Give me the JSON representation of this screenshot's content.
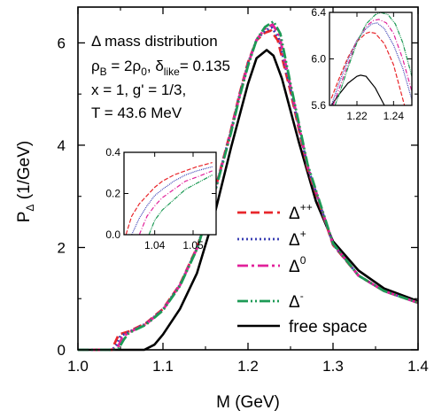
{
  "chart_data": {
    "type": "line",
    "xlabel": "M (GeV)",
    "ylabel": "P",
    "ylabel_sub": "Δ",
    "ylabel_unit": " (1/GeV)",
    "xlim": [
      1.0,
      1.4
    ],
    "ylim": [
      0,
      6.7
    ],
    "xticks": [
      1.0,
      1.1,
      1.2,
      1.3,
      1.4
    ],
    "xtick_labels": [
      "1.0",
      "1.1",
      "1.2",
      "1.3",
      "1.4"
    ],
    "yticks": [
      0,
      2,
      4,
      6
    ],
    "ytick_labels": [
      "0",
      "2",
      "4",
      "6"
    ],
    "grid": false,
    "legend_position": "lower-right",
    "annotation_lines": [
      [
        {
          "t": "Δ mass distribution"
        }
      ],
      [
        {
          "t": "ρ"
        },
        {
          "t": "B",
          "sub": true
        },
        {
          "t": " = 2ρ"
        },
        {
          "t": "0",
          "sub": true
        },
        {
          "t": ", δ"
        },
        {
          "t": "like",
          "sub": true
        },
        {
          "t": "= 0.135"
        }
      ],
      [
        {
          "t": "x = 1,    g' = 1/3,"
        }
      ],
      [
        {
          "t": "T = 43.6 MeV"
        }
      ]
    ],
    "series": [
      {
        "key": "dpp",
        "label": "Δ",
        "sup": "++",
        "color": "#e8262b",
        "dash": "10,5",
        "x": [
          1.0,
          1.02,
          1.04,
          1.043,
          1.048,
          1.06,
          1.08,
          1.1,
          1.12,
          1.14,
          1.16,
          1.18,
          1.19,
          1.2,
          1.21,
          1.22,
          1.227,
          1.235,
          1.25,
          1.27,
          1.3,
          1.33,
          1.36,
          1.4
        ],
        "y": [
          0,
          0,
          0,
          0.12,
          0.3,
          0.36,
          0.52,
          0.8,
          1.28,
          2.0,
          3.05,
          4.3,
          5.0,
          5.62,
          6.05,
          6.2,
          6.24,
          6.05,
          5.05,
          3.55,
          2.05,
          1.45,
          1.15,
          0.92
        ]
      },
      {
        "key": "dp",
        "label": "Δ",
        "sup": "+",
        "color": "#3a3fb3",
        "dash": "2,3",
        "x": [
          1.0,
          1.02,
          1.04,
          1.045,
          1.05,
          1.06,
          1.08,
          1.1,
          1.12,
          1.14,
          1.16,
          1.18,
          1.19,
          1.2,
          1.21,
          1.22,
          1.228,
          1.236,
          1.25,
          1.27,
          1.3,
          1.33,
          1.36,
          1.4
        ],
        "y": [
          0,
          0,
          0,
          0.08,
          0.27,
          0.35,
          0.51,
          0.79,
          1.27,
          1.99,
          3.04,
          4.28,
          4.98,
          5.6,
          6.06,
          6.24,
          6.3,
          6.1,
          5.1,
          3.58,
          2.06,
          1.45,
          1.15,
          0.92
        ]
      },
      {
        "key": "d0",
        "label": "Δ",
        "sup": "0",
        "color": "#e1219a",
        "dash": "12,4,3,4",
        "x": [
          1.0,
          1.02,
          1.04,
          1.047,
          1.052,
          1.06,
          1.08,
          1.1,
          1.12,
          1.14,
          1.16,
          1.18,
          1.19,
          1.2,
          1.21,
          1.22,
          1.229,
          1.237,
          1.25,
          1.27,
          1.3,
          1.33,
          1.36,
          1.4
        ],
        "y": [
          0,
          0,
          0,
          0.05,
          0.24,
          0.34,
          0.5,
          0.78,
          1.26,
          1.98,
          3.03,
          4.26,
          4.96,
          5.58,
          6.06,
          6.28,
          6.36,
          6.14,
          5.15,
          3.6,
          2.07,
          1.45,
          1.15,
          0.92
        ]
      },
      {
        "key": "dm",
        "label": "Δ",
        "sup": "-",
        "color": "#1d9a55",
        "dash": "12,3,2,3,2,3",
        "x": [
          1.0,
          1.02,
          1.04,
          1.048,
          1.054,
          1.06,
          1.08,
          1.1,
          1.12,
          1.14,
          1.16,
          1.18,
          1.19,
          1.2,
          1.21,
          1.22,
          1.23,
          1.238,
          1.25,
          1.27,
          1.3,
          1.33,
          1.36,
          1.4
        ],
        "y": [
          0,
          0,
          0,
          0.03,
          0.2,
          0.33,
          0.49,
          0.77,
          1.25,
          1.97,
          3.02,
          4.24,
          4.94,
          5.55,
          6.06,
          6.31,
          6.42,
          6.18,
          5.2,
          3.63,
          2.08,
          1.45,
          1.15,
          0.92
        ]
      },
      {
        "key": "free",
        "label": "free space",
        "sup": "",
        "color": "#000000",
        "dash": "",
        "x": [
          1.0,
          1.06,
          1.078,
          1.09,
          1.1,
          1.12,
          1.14,
          1.16,
          1.18,
          1.2,
          1.21,
          1.222,
          1.23,
          1.24,
          1.26,
          1.28,
          1.3,
          1.33,
          1.36,
          1.4
        ],
        "y": [
          0,
          0,
          0,
          0.1,
          0.3,
          0.8,
          1.5,
          2.6,
          3.95,
          5.2,
          5.7,
          5.86,
          5.75,
          5.3,
          4.05,
          2.9,
          2.12,
          1.55,
          1.2,
          0.95
        ]
      }
    ],
    "insets": [
      {
        "name": "inset-low-mass",
        "xlim": [
          1.032,
          1.056
        ],
        "ylim": [
          0,
          0.4
        ],
        "xticks": [
          1.04,
          1.05
        ],
        "xtick_labels": [
          "1.04",
          "1.05"
        ],
        "yticks": [
          0,
          0.2,
          0.4
        ],
        "ytick_labels": [
          "0.0",
          "0.2",
          "0.4"
        ],
        "series": [
          {
            "key": "dpp",
            "x": [
              1.0325,
              1.034,
              1.036,
              1.038,
              1.04,
              1.042,
              1.045,
              1.048,
              1.051,
              1.055
            ],
            "y": [
              0.0,
              0.09,
              0.15,
              0.19,
              0.23,
              0.26,
              0.29,
              0.31,
              0.33,
              0.35
            ]
          },
          {
            "key": "dp",
            "x": [
              1.034,
              1.036,
              1.038,
              1.04,
              1.042,
              1.045,
              1.048,
              1.051,
              1.055
            ],
            "y": [
              0.0,
              0.08,
              0.14,
              0.19,
              0.22,
              0.26,
              0.29,
              0.31,
              0.33
            ]
          },
          {
            "key": "d0",
            "x": [
              1.036,
              1.038,
              1.04,
              1.042,
              1.045,
              1.048,
              1.051,
              1.055
            ],
            "y": [
              0.0,
              0.09,
              0.14,
              0.18,
              0.22,
              0.26,
              0.28,
              0.31
            ]
          },
          {
            "key": "dm",
            "x": [
              1.0385,
              1.04,
              1.042,
              1.045,
              1.048,
              1.051,
              1.055
            ],
            "y": [
              0.0,
              0.07,
              0.12,
              0.17,
              0.22,
              0.25,
              0.29
            ]
          }
        ]
      },
      {
        "name": "inset-peak",
        "xlim": [
          1.205,
          1.25
        ],
        "ylim": [
          5.6,
          6.4
        ],
        "xticks": [
          1.22,
          1.24
        ],
        "xtick_labels": [
          "1.22",
          "1.24"
        ],
        "yticks": [
          5.6,
          6.0,
          6.4
        ],
        "ytick_labels": [
          "5.6",
          "6.0",
          "6.4"
        ],
        "series": [
          {
            "key": "free",
            "x": [
              1.206,
              1.21,
              1.215,
              1.22,
              1.222,
              1.225,
              1.23,
              1.235
            ],
            "y": [
              5.6,
              5.69,
              5.79,
              5.85,
              5.86,
              5.85,
              5.75,
              5.6
            ]
          },
          {
            "key": "dpp",
            "x": [
              1.206,
              1.21,
              1.215,
              1.22,
              1.225,
              1.227,
              1.23,
              1.235,
              1.24,
              1.246
            ],
            "y": [
              5.66,
              5.82,
              6.01,
              6.15,
              6.22,
              6.23,
              6.22,
              6.13,
              5.95,
              5.6
            ]
          },
          {
            "key": "dp",
            "x": [
              1.206,
              1.21,
              1.215,
              1.22,
              1.225,
              1.228,
              1.231,
              1.235,
              1.24,
              1.245,
              1.25
            ],
            "y": [
              5.6,
              5.78,
              5.99,
              6.16,
              6.26,
              6.3,
              6.31,
              6.26,
              6.12,
              5.92,
              5.65
            ]
          },
          {
            "key": "d0",
            "x": [
              1.207,
              1.21,
              1.215,
              1.22,
              1.225,
              1.229,
              1.232,
              1.236,
              1.24,
              1.245,
              1.25
            ],
            "y": [
              5.6,
              5.73,
              5.95,
              6.15,
              6.28,
              6.33,
              6.34,
              6.31,
              6.22,
              6.0,
              5.72
            ]
          },
          {
            "key": "dm",
            "x": [
              1.208,
              1.21,
              1.215,
              1.22,
              1.225,
              1.23,
              1.233,
              1.237,
              1.241,
              1.245,
              1.25
            ],
            "y": [
              5.6,
              5.68,
              5.92,
              6.14,
              6.3,
              6.38,
              6.4,
              6.38,
              6.3,
              6.14,
              5.85
            ]
          }
        ]
      }
    ]
  }
}
